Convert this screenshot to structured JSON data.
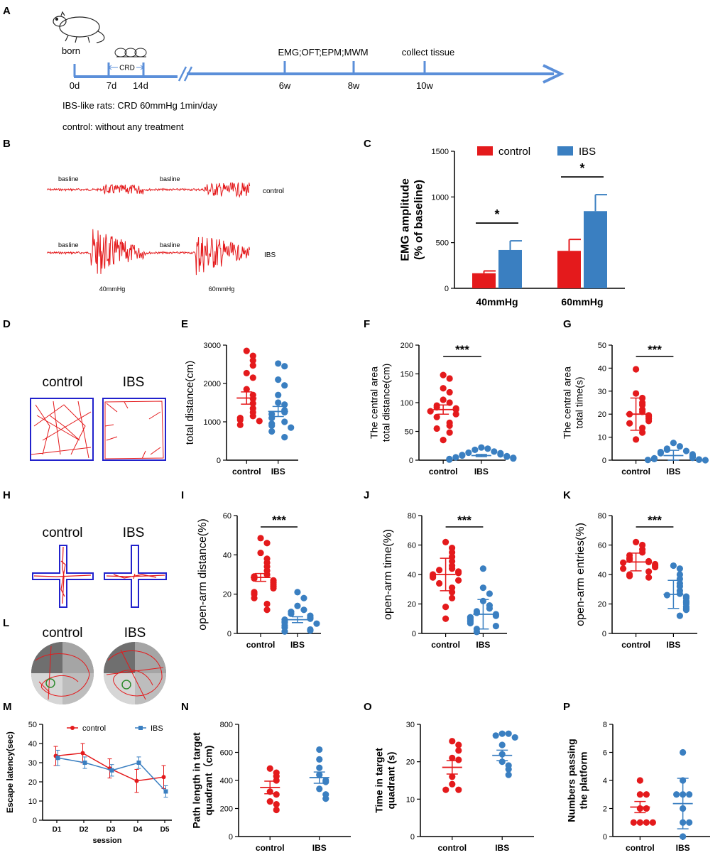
{
  "colors": {
    "control": "#e41a1c",
    "ibs": "#3a7fc1",
    "timeline": "#5b8fd9",
    "maze": "#2222cc",
    "track": "#e41a1c",
    "axis": "#000000"
  },
  "panel_labels": [
    "A",
    "B",
    "C",
    "D",
    "E",
    "F",
    "G",
    "H",
    "I",
    "J",
    "K",
    "L",
    "M",
    "N",
    "O",
    "P"
  ],
  "timeline": {
    "born": "born",
    "crd": "CRD",
    "ticks": [
      "0d",
      "7d",
      "14d",
      "6w",
      "8w",
      "10w"
    ],
    "events": [
      "EMG;OFT;EPM;MWM",
      "collect tissue"
    ],
    "note1": "IBS-like rats: CRD  60mmHg   1min/day",
    "note2": "control: without any treatment"
  },
  "emg_traces": {
    "baseline": "basline",
    "control_label": "control",
    "ibs_label": "IBS",
    "p40": "40mmHg",
    "p60": "60mmHg"
  },
  "maze_labels": {
    "control": "control",
    "ibs": "IBS"
  },
  "chart_data": [
    {
      "id": "C",
      "type": "bar",
      "title": "",
      "legend": [
        "control",
        "IBS"
      ],
      "legend_position": "top",
      "categories": [
        "40mmHg",
        "60mmHg"
      ],
      "ylabel": "EMG amplitude (% of baseline)",
      "ylim": [
        0,
        1500
      ],
      "yticks": [
        0,
        500,
        1000,
        1500
      ],
      "series": [
        {
          "name": "control",
          "values": [
            165,
            410
          ],
          "errors": [
            25,
            125
          ]
        },
        {
          "name": "IBS",
          "values": [
            420,
            845
          ],
          "errors": [
            100,
            180
          ]
        }
      ],
      "annotations": [
        "*",
        "*"
      ]
    },
    {
      "id": "E",
      "type": "scatter",
      "categories": [
        "control",
        "IBS"
      ],
      "ylabel": "total distance(cm)",
      "ylim": [
        0,
        3000
      ],
      "yticks": [
        0,
        1000,
        2000,
        3000
      ],
      "error_style": "sem",
      "groups": [
        {
          "name": "control",
          "mean": 1620,
          "err": 160,
          "values": [
            2850,
            2720,
            2600,
            2470,
            2270,
            2150,
            1850,
            1700,
            1600,
            1480,
            1350,
            1250,
            1150,
            1100,
            1050,
            1020,
            920
          ]
        },
        {
          "name": "IBS",
          "mean": 1270,
          "err": 130,
          "values": [
            2520,
            2450,
            2100,
            1950,
            1700,
            1500,
            1450,
            1300,
            1250,
            1200,
            1100,
            1000,
            950,
            900,
            850,
            750,
            600
          ]
        }
      ],
      "annotations": []
    },
    {
      "id": "F",
      "type": "scatter",
      "categories": [
        "control",
        "IBS"
      ],
      "ylabel": "The central area total distance(cm)",
      "ylim": [
        0,
        200
      ],
      "yticks": [
        0,
        50,
        100,
        150,
        200
      ],
      "error_style": "sem",
      "groups": [
        {
          "name": "control",
          "mean": 88,
          "err": 8,
          "values": [
            148,
            142,
            125,
            118,
            105,
            100,
            95,
            92,
            90,
            88,
            85,
            80,
            75,
            65,
            60,
            55,
            48,
            35
          ]
        },
        {
          "name": "IBS",
          "mean": 8,
          "err": 2,
          "values": [
            22,
            20,
            18,
            15,
            13,
            12,
            10,
            9,
            8,
            7,
            6,
            5,
            4,
            3,
            2,
            1
          ]
        }
      ],
      "annotations": [
        "***"
      ]
    },
    {
      "id": "G",
      "type": "scatter",
      "categories": [
        "control",
        "IBS"
      ],
      "ylabel": "The central area total time(s)",
      "ylim": [
        0,
        50
      ],
      "yticks": [
        0,
        10,
        20,
        30,
        40,
        50
      ],
      "error_style": "sd",
      "groups": [
        {
          "name": "control",
          "mean": 20,
          "err": 7,
          "values": [
            39.5,
            29,
            27,
            25,
            24,
            22,
            21,
            20,
            19.5,
            19,
            18,
            17,
            16,
            14,
            12,
            9
          ]
        },
        {
          "name": "IBS",
          "mean": 2,
          "err": 2.3,
          "values": [
            7.5,
            6,
            5,
            4.5,
            4,
            3.5,
            3,
            2.5,
            2,
            1.5,
            1,
            0.8,
            0.5,
            0.3,
            0.2,
            0.1,
            0
          ]
        }
      ],
      "annotations": [
        "***"
      ]
    },
    {
      "id": "I",
      "type": "scatter",
      "categories": [
        "control",
        "IBS"
      ],
      "ylabel": "open-arm distance(%)",
      "ylim": [
        0,
        60
      ],
      "yticks": [
        0,
        20,
        40,
        60
      ],
      "error_style": "sem",
      "groups": [
        {
          "name": "control",
          "mean": 28.5,
          "err": 2,
          "values": [
            48.5,
            46,
            41,
            38,
            36,
            34,
            32,
            30,
            29,
            28,
            27,
            26,
            25,
            24,
            23,
            21,
            20,
            18,
            15,
            12
          ]
        },
        {
          "name": "IBS",
          "mean": 7,
          "err": 1.5,
          "values": [
            21,
            18,
            14,
            12,
            11,
            10,
            9,
            8,
            7.5,
            7,
            6,
            5.5,
            5,
            4,
            3,
            2,
            1.5,
            1
          ]
        }
      ],
      "annotations": [
        "***"
      ]
    },
    {
      "id": "J",
      "type": "scatter",
      "categories": [
        "control",
        "IBS"
      ],
      "ylabel": "open-arm time(%)",
      "ylim": [
        0,
        80
      ],
      "yticks": [
        0,
        20,
        40,
        60,
        80
      ],
      "error_style": "sd",
      "groups": [
        {
          "name": "control",
          "mean": 40,
          "err": 11,
          "values": [
            62,
            58,
            55,
            52,
            49,
            46,
            44,
            43,
            42,
            41,
            40,
            39,
            38,
            36,
            34,
            31,
            28,
            24,
            18,
            10
          ]
        },
        {
          "name": "IBS",
          "mean": 13,
          "err": 10,
          "values": [
            44,
            31,
            27,
            22,
            19,
            17,
            15,
            14,
            13,
            12,
            11,
            10,
            9,
            8,
            7,
            5,
            3,
            1
          ]
        }
      ],
      "annotations": [
        "***"
      ]
    },
    {
      "id": "K",
      "type": "scatter",
      "categories": [
        "control",
        "IBS"
      ],
      "ylabel": "open-arm entries(%)",
      "ylim": [
        0,
        80
      ],
      "yticks": [
        0,
        20,
        40,
        60,
        80
      ],
      "error_style": "sd",
      "groups": [
        {
          "name": "control",
          "mean": 48.5,
          "err": 6,
          "values": [
            62,
            60,
            57,
            55,
            53,
            51,
            50,
            49,
            48.5,
            48,
            47,
            46,
            45,
            44,
            42,
            40,
            39,
            38
          ]
        },
        {
          "name": "IBS",
          "mean": 26.5,
          "err": 9.5,
          "values": [
            46,
            44,
            40,
            37,
            34,
            32,
            29,
            27,
            26,
            25,
            24,
            22,
            21,
            20,
            18,
            17,
            16,
            12
          ]
        }
      ],
      "annotations": [
        "***"
      ]
    },
    {
      "id": "M",
      "type": "line",
      "xlabel": "session",
      "ylabel": "Escape latency(sec)",
      "categories": [
        "D1",
        "D2",
        "D3",
        "D4",
        "D5"
      ],
      "ylim": [
        0,
        50
      ],
      "yticks": [
        0,
        10,
        20,
        30,
        40,
        50
      ],
      "legend": [
        "control",
        "IBS"
      ],
      "legend_position": "top",
      "series": [
        {
          "name": "control",
          "values": [
            33.5,
            35,
            27,
            20.5,
            22.5
          ],
          "errors": [
            5,
            5,
            5,
            6,
            6
          ]
        },
        {
          "name": "IBS",
          "values": [
            32.5,
            30,
            26,
            30,
            15
          ],
          "errors": [
            4,
            3,
            3,
            3,
            3
          ]
        }
      ]
    },
    {
      "id": "N",
      "type": "scatter",
      "categories": [
        "control",
        "IBS"
      ],
      "ylabel": "Path length in target quadrant（cm)",
      "ylim": [
        0,
        800
      ],
      "yticks": [
        0,
        200,
        400,
        600,
        800
      ],
      "error_style": "sem",
      "groups": [
        {
          "name": "control",
          "mean": 350,
          "err": 45,
          "values": [
            485,
            455,
            430,
            400,
            320,
            300,
            250,
            230,
            190
          ]
        },
        {
          "name": "IBS",
          "mean": 420,
          "err": 40,
          "values": [
            620,
            550,
            490,
            440,
            400,
            390,
            340,
            300,
            270
          ]
        }
      ],
      "annotations": []
    },
    {
      "id": "O",
      "type": "scatter",
      "categories": [
        "control",
        "IBS"
      ],
      "ylabel": "Time in target quadrant (s)",
      "ylim": [
        0,
        30
      ],
      "yticks": [
        0,
        10,
        20,
        30
      ],
      "error_style": "sem",
      "groups": [
        {
          "name": "control",
          "mean": 18.5,
          "err": 1.8,
          "values": [
            25.5,
            24.5,
            23,
            21,
            20.5,
            16,
            14,
            12.5,
            12.5
          ]
        },
        {
          "name": "IBS",
          "mean": 21.7,
          "err": 1.4,
          "values": [
            27.5,
            27.5,
            27,
            26.5,
            24.5,
            22,
            20,
            19,
            18,
            16.5
          ]
        }
      ],
      "annotations": []
    },
    {
      "id": "P",
      "type": "scatter",
      "categories": [
        "control",
        "IBS"
      ],
      "ylabel": "Numbers passing the platform",
      "ylim": [
        0,
        8
      ],
      "yticks": [
        0,
        2,
        4,
        6,
        8
      ],
      "error_style": "sd",
      "groups": [
        {
          "name": "control",
          "mean": 2.1,
          "err": 0.4,
          "values": [
            4,
            3,
            3,
            2,
            2,
            1,
            1,
            1,
            1
          ]
        },
        {
          "name": "IBS",
          "mean": 2.35,
          "err": 1.8,
          "values": [
            6,
            4,
            3,
            3,
            3,
            2,
            1,
            1,
            0
          ]
        }
      ],
      "annotations": []
    }
  ]
}
